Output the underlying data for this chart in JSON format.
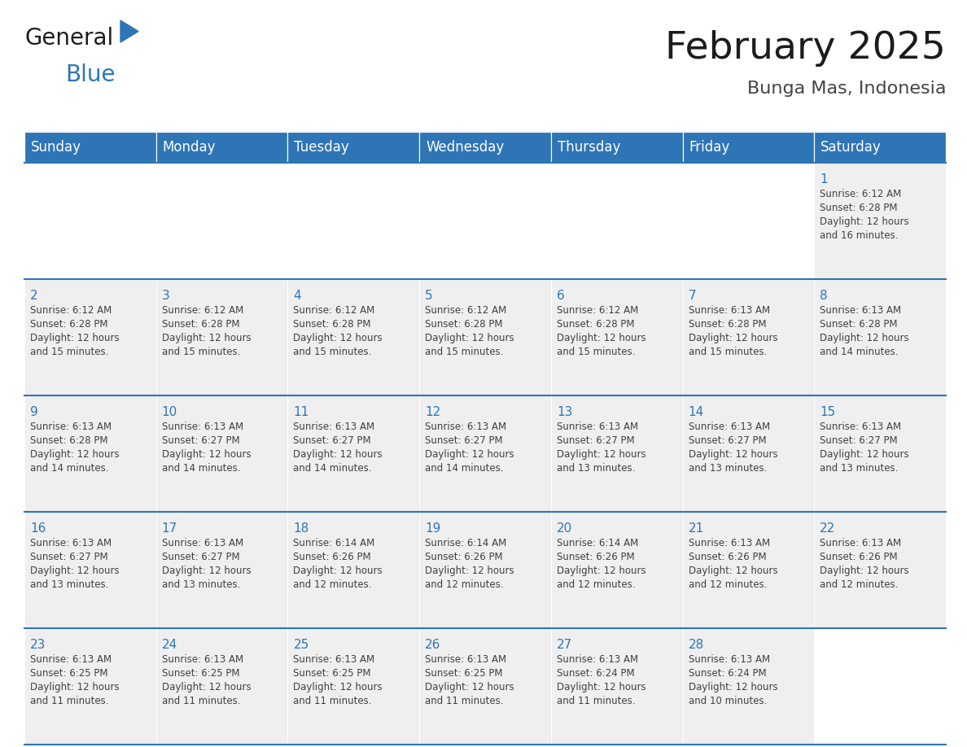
{
  "title": "February 2025",
  "subtitle": "Bunga Mas, Indonesia",
  "header_bg_color": "#2E75B6",
  "header_text_color": "#FFFFFF",
  "cell_bg_color": "#EFEFEF",
  "cell_bg_empty": "#FFFFFF",
  "day_number_color": "#2E75B6",
  "cell_text_color": "#404040",
  "border_color": "#2E75B6",
  "days_of_week": [
    "Sunday",
    "Monday",
    "Tuesday",
    "Wednesday",
    "Thursday",
    "Friday",
    "Saturday"
  ],
  "weeks": [
    [
      {
        "day": null,
        "info": null
      },
      {
        "day": null,
        "info": null
      },
      {
        "day": null,
        "info": null
      },
      {
        "day": null,
        "info": null
      },
      {
        "day": null,
        "info": null
      },
      {
        "day": null,
        "info": null
      },
      {
        "day": 1,
        "info": "Sunrise: 6:12 AM\nSunset: 6:28 PM\nDaylight: 12 hours\nand 16 minutes."
      }
    ],
    [
      {
        "day": 2,
        "info": "Sunrise: 6:12 AM\nSunset: 6:28 PM\nDaylight: 12 hours\nand 15 minutes."
      },
      {
        "day": 3,
        "info": "Sunrise: 6:12 AM\nSunset: 6:28 PM\nDaylight: 12 hours\nand 15 minutes."
      },
      {
        "day": 4,
        "info": "Sunrise: 6:12 AM\nSunset: 6:28 PM\nDaylight: 12 hours\nand 15 minutes."
      },
      {
        "day": 5,
        "info": "Sunrise: 6:12 AM\nSunset: 6:28 PM\nDaylight: 12 hours\nand 15 minutes."
      },
      {
        "day": 6,
        "info": "Sunrise: 6:12 AM\nSunset: 6:28 PM\nDaylight: 12 hours\nand 15 minutes."
      },
      {
        "day": 7,
        "info": "Sunrise: 6:13 AM\nSunset: 6:28 PM\nDaylight: 12 hours\nand 15 minutes."
      },
      {
        "day": 8,
        "info": "Sunrise: 6:13 AM\nSunset: 6:28 PM\nDaylight: 12 hours\nand 14 minutes."
      }
    ],
    [
      {
        "day": 9,
        "info": "Sunrise: 6:13 AM\nSunset: 6:28 PM\nDaylight: 12 hours\nand 14 minutes."
      },
      {
        "day": 10,
        "info": "Sunrise: 6:13 AM\nSunset: 6:27 PM\nDaylight: 12 hours\nand 14 minutes."
      },
      {
        "day": 11,
        "info": "Sunrise: 6:13 AM\nSunset: 6:27 PM\nDaylight: 12 hours\nand 14 minutes."
      },
      {
        "day": 12,
        "info": "Sunrise: 6:13 AM\nSunset: 6:27 PM\nDaylight: 12 hours\nand 14 minutes."
      },
      {
        "day": 13,
        "info": "Sunrise: 6:13 AM\nSunset: 6:27 PM\nDaylight: 12 hours\nand 13 minutes."
      },
      {
        "day": 14,
        "info": "Sunrise: 6:13 AM\nSunset: 6:27 PM\nDaylight: 12 hours\nand 13 minutes."
      },
      {
        "day": 15,
        "info": "Sunrise: 6:13 AM\nSunset: 6:27 PM\nDaylight: 12 hours\nand 13 minutes."
      }
    ],
    [
      {
        "day": 16,
        "info": "Sunrise: 6:13 AM\nSunset: 6:27 PM\nDaylight: 12 hours\nand 13 minutes."
      },
      {
        "day": 17,
        "info": "Sunrise: 6:13 AM\nSunset: 6:27 PM\nDaylight: 12 hours\nand 13 minutes."
      },
      {
        "day": 18,
        "info": "Sunrise: 6:14 AM\nSunset: 6:26 PM\nDaylight: 12 hours\nand 12 minutes."
      },
      {
        "day": 19,
        "info": "Sunrise: 6:14 AM\nSunset: 6:26 PM\nDaylight: 12 hours\nand 12 minutes."
      },
      {
        "day": 20,
        "info": "Sunrise: 6:14 AM\nSunset: 6:26 PM\nDaylight: 12 hours\nand 12 minutes."
      },
      {
        "day": 21,
        "info": "Sunrise: 6:13 AM\nSunset: 6:26 PM\nDaylight: 12 hours\nand 12 minutes."
      },
      {
        "day": 22,
        "info": "Sunrise: 6:13 AM\nSunset: 6:26 PM\nDaylight: 12 hours\nand 12 minutes."
      }
    ],
    [
      {
        "day": 23,
        "info": "Sunrise: 6:13 AM\nSunset: 6:25 PM\nDaylight: 12 hours\nand 11 minutes."
      },
      {
        "day": 24,
        "info": "Sunrise: 6:13 AM\nSunset: 6:25 PM\nDaylight: 12 hours\nand 11 minutes."
      },
      {
        "day": 25,
        "info": "Sunrise: 6:13 AM\nSunset: 6:25 PM\nDaylight: 12 hours\nand 11 minutes."
      },
      {
        "day": 26,
        "info": "Sunrise: 6:13 AM\nSunset: 6:25 PM\nDaylight: 12 hours\nand 11 minutes."
      },
      {
        "day": 27,
        "info": "Sunrise: 6:13 AM\nSunset: 6:24 PM\nDaylight: 12 hours\nand 11 minutes."
      },
      {
        "day": 28,
        "info": "Sunrise: 6:13 AM\nSunset: 6:24 PM\nDaylight: 12 hours\nand 10 minutes."
      },
      {
        "day": null,
        "info": null
      }
    ]
  ],
  "logo_general_color": "#222222",
  "logo_blue_color": "#2E75B6",
  "logo_triangle_color": "#2E75B6",
  "title_fontsize": 34,
  "subtitle_fontsize": 16,
  "header_fontsize": 12,
  "day_num_fontsize": 11,
  "cell_text_fontsize": 8.5
}
